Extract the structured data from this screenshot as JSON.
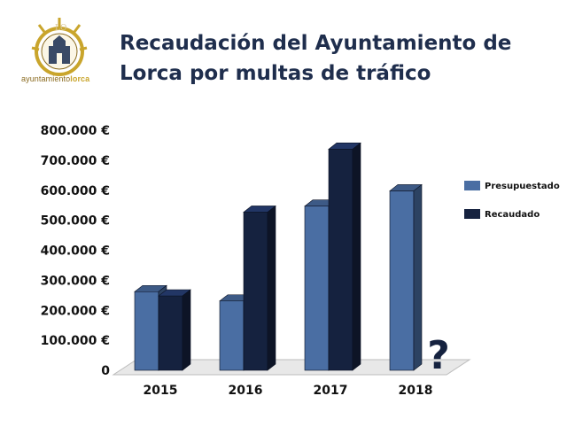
{
  "header": {
    "title_line1": "Recaudación del Ayuntamiento de",
    "title_line2": "Lorca por multas de tráfico",
    "logo_text_part1": "ayuntamiento",
    "logo_text_part2": "lorca"
  },
  "colors": {
    "presupuestado": "#4a6ea3",
    "recaudado": "#15223f",
    "title": "#1f2e4d",
    "logo_gold": "#c9a52c"
  },
  "chart_data": {
    "type": "bar",
    "title": "Recaudación del Ayuntamiento de Lorca por multas de tráfico",
    "categories": [
      "2015",
      "2016",
      "2017",
      "2018"
    ],
    "series": [
      {
        "name": "Presupuestado",
        "values": [
          262000,
          231000,
          547000,
          598000
        ]
      },
      {
        "name": "Recaudado",
        "values": [
          248000,
          527000,
          737000,
          null
        ]
      }
    ],
    "ylim": [
      0,
      800000
    ],
    "yticks": [
      0,
      100000,
      200000,
      300000,
      400000,
      500000,
      600000,
      700000,
      800000
    ],
    "ytick_labels": [
      "0",
      "100.000 €",
      "200.000 €",
      "300.000 €",
      "400.000 €",
      "500.000 €",
      "600.000 €",
      "700.000 €",
      "800.000 €"
    ],
    "annotations": [
      {
        "category": "2018",
        "text": "?"
      }
    ],
    "legend_position": "right",
    "grid": false,
    "style": "3d"
  }
}
